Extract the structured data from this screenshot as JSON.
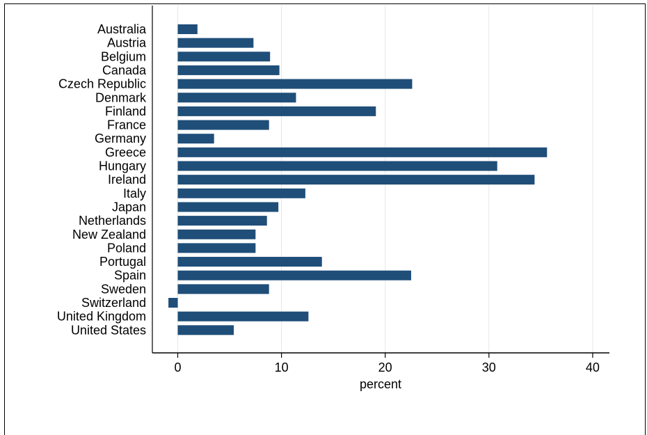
{
  "chart_data": {
    "type": "bar",
    "orientation": "horizontal",
    "categories": [
      "Australia",
      "Austria",
      "Belgium",
      "Canada",
      "Czech Republic",
      "Denmark",
      "Finland",
      "France",
      "Germany",
      "Greece",
      "Hungary",
      "Ireland",
      "Italy",
      "Japan",
      "Netherlands",
      "New Zealand",
      "Poland",
      "Portugal",
      "Spain",
      "Sweden",
      "Switzerland",
      "United Kingdom",
      "United States"
    ],
    "values": [
      1.9,
      7.3,
      8.9,
      9.8,
      22.6,
      11.4,
      19.1,
      8.8,
      3.5,
      35.6,
      30.8,
      34.4,
      12.3,
      9.7,
      8.6,
      7.5,
      7.5,
      13.9,
      22.5,
      8.8,
      -0.9,
      12.6,
      5.4
    ],
    "xlabel": "percent",
    "ylabel": "",
    "title": "",
    "xlim": [
      -2.4,
      41.7
    ],
    "xticks": [
      0,
      10,
      20,
      30,
      40
    ],
    "grid": true,
    "bar_color": "#1f4e79",
    "grid_color": "#e6e6e6"
  }
}
